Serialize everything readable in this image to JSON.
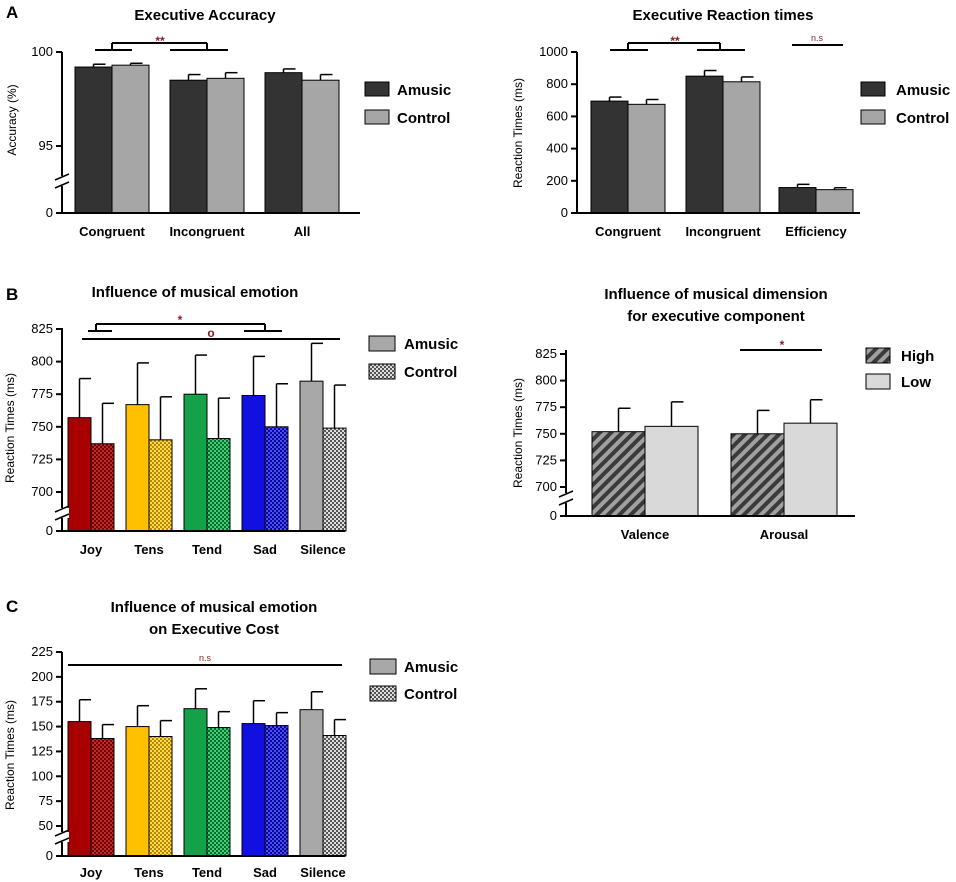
{
  "panel_labels": [
    "A",
    "B",
    "C"
  ],
  "colors": {
    "amusic_dark": "#333333",
    "control_gray": "#a6a6a6",
    "silence_gray": "#a8a8a8",
    "joy": "#a80000",
    "tens": "#ffc000",
    "tend": "#13a24a",
    "sad": "#1010e0",
    "high_stripe": "#555555",
    "low_fill": "#d9d9d9",
    "significance": "#8b1a1a"
  },
  "chart_data": [
    {
      "id": "A1",
      "type": "bar",
      "title": "Executive Accuracy",
      "xlabel": "",
      "ylabel": "Accuracy (%)",
      "categories": [
        "Congruent",
        "Incongruent",
        "All"
      ],
      "series": [
        {
          "name": "Amusic",
          "values": [
            99.2,
            98.5,
            98.9
          ],
          "errors": [
            0.15,
            0.3,
            0.2
          ]
        },
        {
          "name": "Control",
          "values": [
            99.3,
            98.6,
            98.5
          ],
          "errors": [
            0.1,
            0.3,
            0.3
          ]
        }
      ],
      "ylim": [
        0,
        100
      ],
      "yticks": [
        "0",
        "95",
        "100"
      ],
      "axis_break": true,
      "legend": [
        "Amusic",
        "Control"
      ],
      "legend_position": "right",
      "annotations": [
        {
          "text": "**",
          "between": [
            "Congruent",
            "Incongruent"
          ]
        }
      ]
    },
    {
      "id": "A2",
      "type": "bar",
      "title": "Executive Reaction times",
      "xlabel": "",
      "ylabel": "Reaction Times (ms)",
      "categories": [
        "Congruent",
        "Incongruent",
        "Efficiency"
      ],
      "series": [
        {
          "name": "Amusic",
          "values": [
            695,
            850,
            158
          ],
          "errors": [
            25,
            35,
            20
          ]
        },
        {
          "name": "Control",
          "values": [
            675,
            815,
            145
          ],
          "errors": [
            30,
            30,
            12
          ]
        }
      ],
      "ylim": [
        0,
        1000
      ],
      "yticks": [
        "0",
        "200",
        "400",
        "600",
        "800",
        "1000"
      ],
      "legend": [
        "Amusic",
        "Control"
      ],
      "legend_position": "right",
      "annotations": [
        {
          "text": "**",
          "between": [
            "Congruent",
            "Incongruent"
          ]
        },
        {
          "text": "n.s",
          "over": "Efficiency"
        }
      ]
    },
    {
      "id": "B1",
      "type": "bar",
      "title": "Influence of musical emotion",
      "xlabel": "",
      "ylabel": "Reaction Times (ms)",
      "categories": [
        "Joy",
        "Tens",
        "Tend",
        "Sad",
        "Silence"
      ],
      "series": [
        {
          "name": "Amusic",
          "values": [
            757,
            767,
            775,
            774,
            785
          ],
          "errors": [
            30,
            32,
            30,
            30,
            29
          ]
        },
        {
          "name": "Control",
          "values": [
            737,
            740,
            741,
            750,
            749
          ],
          "errors": [
            31,
            33,
            31,
            33,
            33
          ]
        }
      ],
      "ylim": [
        0,
        825
      ],
      "yticks": [
        "0",
        "700",
        "725",
        "750",
        "775",
        "800",
        "825"
      ],
      "axis_break": true,
      "legend": [
        "Amusic",
        "Control"
      ],
      "legend_position": "right",
      "annotations": [
        {
          "text": "*",
          "between": [
            "Joy",
            "Sad"
          ]
        },
        {
          "text": "o",
          "between": [
            "Joy",
            "Silence"
          ]
        }
      ]
    },
    {
      "id": "B2",
      "type": "bar",
      "title": [
        "Influence of musical dimension",
        "for executive component"
      ],
      "xlabel": "",
      "ylabel": "Reaction Times (ms)",
      "categories": [
        "Valence",
        "Arousal"
      ],
      "series": [
        {
          "name": "High",
          "values": [
            752,
            750
          ],
          "errors": [
            22,
            22
          ]
        },
        {
          "name": "Low",
          "values": [
            757,
            760
          ],
          "errors": [
            23,
            22
          ]
        }
      ],
      "ylim": [
        0,
        825
      ],
      "yticks": [
        "0",
        "700",
        "725",
        "750",
        "775",
        "800",
        "825"
      ],
      "axis_break": true,
      "legend": [
        "High",
        "Low"
      ],
      "legend_position": "right",
      "annotations": [
        {
          "text": "*",
          "over": "Arousal"
        }
      ]
    },
    {
      "id": "C",
      "type": "bar",
      "title": [
        "Influence of musical emotion",
        "on Executive Cost"
      ],
      "xlabel": "",
      "ylabel": "Reaction Times (ms)",
      "categories": [
        "Joy",
        "Tens",
        "Tend",
        "Sad",
        "Silence"
      ],
      "series": [
        {
          "name": "Amusic",
          "values": [
            155,
            150,
            168,
            153,
            167
          ],
          "errors": [
            22,
            21,
            20,
            23,
            18
          ]
        },
        {
          "name": "Control",
          "values": [
            138,
            140,
            149,
            151,
            141
          ],
          "errors": [
            14,
            16,
            16,
            13,
            16
          ]
        }
      ],
      "ylim": [
        0,
        225
      ],
      "yticks": [
        "0",
        "50",
        "75",
        "100",
        "125",
        "150",
        "175",
        "200",
        "225"
      ],
      "axis_break": true,
      "legend": [
        "Amusic",
        "Control"
      ],
      "legend_position": "right",
      "annotations": [
        {
          "text": "n.s",
          "over": "all"
        }
      ]
    }
  ]
}
